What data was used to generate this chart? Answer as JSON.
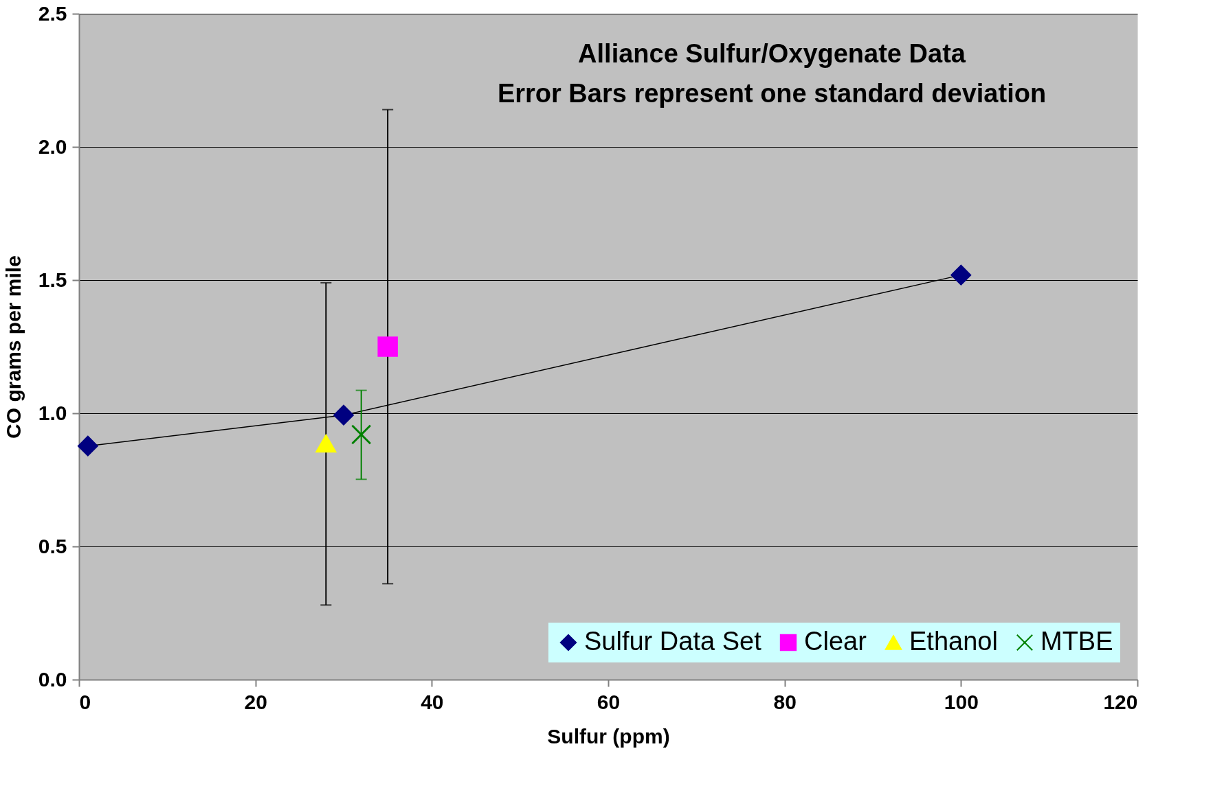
{
  "chart_data": {
    "type": "scatter",
    "title": "Alliance Sulfur/Oxygenate Data",
    "subtitle": "Error Bars represent one standard deviation",
    "xlabel": "Sulfur (ppm)",
    "ylabel": "CO grams per mile",
    "xlim": [
      0,
      120
    ],
    "xticks": [
      0,
      20,
      40,
      60,
      80,
      100,
      120
    ],
    "ylim": [
      0,
      2.5
    ],
    "yticks": [
      {
        "value": 0,
        "label": "0.0"
      },
      {
        "value": 0.5,
        "label": "0.5"
      },
      {
        "value": 1,
        "label": "1.0"
      },
      {
        "value": 1.5,
        "label": "1.5"
      },
      {
        "value": 2,
        "label": "2.0"
      },
      {
        "value": 2.5,
        "label": "2.5"
      }
    ],
    "grid": "y",
    "legend": "bottom right",
    "series": [
      {
        "name": "Sulfur Data Set",
        "type": "line",
        "marker": "diamond",
        "color": "#000080",
        "x": [
          1,
          30,
          100
        ],
        "values": [
          0.877,
          0.993,
          1.519
        ]
      },
      {
        "name": "Clear",
        "type": "scatter",
        "marker": "square",
        "color": "#ff00ff",
        "x": [
          35
        ],
        "values": [
          1.25
        ],
        "errors": [
          [
            0.36,
            2.14
          ]
        ]
      },
      {
        "name": "Ethanol",
        "type": "scatter",
        "marker": "triangle",
        "color": "#ffff00",
        "x": [
          28
        ],
        "values": [
          0.886
        ],
        "errors": [
          [
            0.28,
            1.49
          ]
        ]
      },
      {
        "name": "MTBE",
        "type": "scatter",
        "marker": "cross",
        "color": "#008000",
        "x": [
          32
        ],
        "values": [
          0.92
        ],
        "errors": [
          [
            0.752,
            1.086
          ]
        ]
      }
    ]
  }
}
